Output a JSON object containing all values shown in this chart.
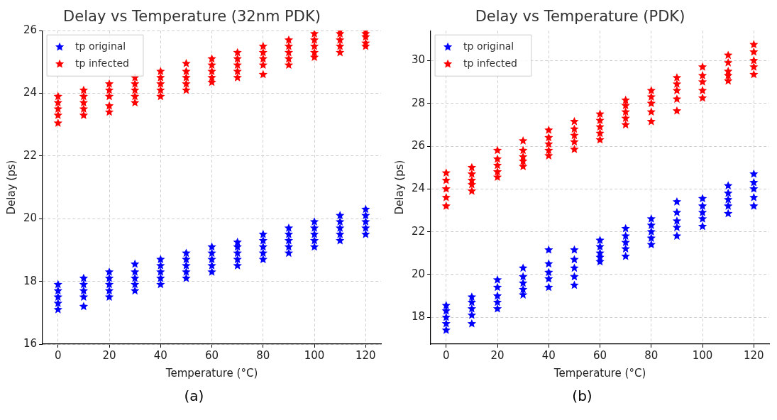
{
  "chart_data": [
    {
      "type": "scatter",
      "title": "Delay vs Temperature (32nm PDK)",
      "xlabel": "Temperature (°C)",
      "ylabel": "Delay (ps)",
      "annotations": [
        "(a)"
      ],
      "xlim": [
        -6,
        126
      ],
      "xticks": [
        0,
        20,
        40,
        60,
        80,
        100,
        120
      ],
      "ylim": [
        16,
        26
      ],
      "yticks": [
        16,
        18,
        20,
        22,
        24,
        26
      ],
      "grid": true,
      "legend": "top left",
      "marker": "star",
      "series": [
        {
          "name": "tp original",
          "color": "#0000ff",
          "x": [
            0,
            0,
            0,
            0,
            0,
            10,
            10,
            10,
            10,
            10,
            20,
            20,
            20,
            20,
            20,
            30,
            30,
            30,
            30,
            30,
            40,
            40,
            40,
            40,
            40,
            50,
            50,
            50,
            50,
            50,
            60,
            60,
            60,
            60,
            60,
            70,
            70,
            70,
            70,
            70,
            80,
            80,
            80,
            80,
            80,
            90,
            90,
            90,
            90,
            90,
            100,
            100,
            100,
            100,
            100,
            110,
            110,
            110,
            110,
            110,
            120,
            120,
            120,
            120,
            120
          ],
          "values": [
            17.1,
            17.3,
            17.5,
            17.7,
            17.9,
            17.2,
            17.5,
            17.7,
            17.9,
            18.1,
            17.5,
            17.7,
            17.9,
            18.1,
            18.3,
            17.7,
            17.9,
            18.1,
            18.3,
            18.55,
            17.9,
            18.1,
            18.3,
            18.5,
            18.7,
            18.1,
            18.3,
            18.5,
            18.7,
            18.9,
            18.3,
            18.5,
            18.7,
            18.9,
            19.1,
            18.5,
            18.7,
            18.9,
            19.1,
            19.25,
            18.7,
            18.9,
            19.1,
            19.3,
            19.5,
            18.9,
            19.1,
            19.3,
            19.5,
            19.7,
            19.1,
            19.3,
            19.5,
            19.7,
            19.9,
            19.3,
            19.5,
            19.7,
            19.9,
            20.1,
            19.5,
            19.7,
            19.9,
            20.1,
            20.3
          ]
        },
        {
          "name": "tp infected",
          "color": "#ff0000",
          "x": [
            0,
            0,
            0,
            0,
            0,
            10,
            10,
            10,
            10,
            10,
            20,
            20,
            20,
            20,
            20,
            30,
            30,
            30,
            30,
            30,
            40,
            40,
            40,
            40,
            40,
            50,
            50,
            50,
            50,
            50,
            60,
            60,
            60,
            60,
            60,
            70,
            70,
            70,
            70,
            70,
            80,
            80,
            80,
            80,
            80,
            90,
            90,
            90,
            90,
            90,
            100,
            100,
            100,
            100,
            100,
            110,
            110,
            110,
            110,
            110,
            120,
            120,
            120,
            120,
            120
          ],
          "values": [
            23.05,
            23.3,
            23.5,
            23.7,
            23.9,
            23.3,
            23.5,
            23.7,
            23.9,
            24.1,
            23.4,
            23.6,
            23.9,
            24.1,
            24.3,
            23.7,
            23.9,
            24.1,
            24.3,
            24.5,
            23.9,
            24.1,
            24.3,
            24.5,
            24.7,
            24.1,
            24.3,
            24.5,
            24.7,
            24.95,
            24.35,
            24.5,
            24.7,
            24.9,
            25.1,
            24.5,
            24.7,
            24.9,
            25.1,
            25.3,
            24.6,
            24.9,
            25.1,
            25.3,
            25.5,
            24.9,
            25.1,
            25.3,
            25.5,
            25.7,
            25.15,
            25.3,
            25.5,
            25.7,
            25.9,
            25.3,
            25.5,
            25.7,
            25.9,
            26,
            25.5,
            25.6,
            25.8,
            25.9,
            26
          ]
        }
      ]
    },
    {
      "type": "scatter",
      "title": "Delay vs Temperature (PDK)",
      "xlabel": "Temperature (°C)",
      "ylabel": "Delay (ps)",
      "annotations": [
        "(b)"
      ],
      "xlim": [
        -6,
        126
      ],
      "xticks": [
        0,
        20,
        40,
        60,
        80,
        100,
        120
      ],
      "ylim": [
        16.75,
        31.4
      ],
      "yticks": [
        18,
        20,
        22,
        24,
        26,
        28,
        30
      ],
      "grid": true,
      "legend": "top left",
      "marker": "star",
      "series": [
        {
          "name": "tp original",
          "color": "#0000ff",
          "x": [
            0,
            0,
            0,
            0,
            0,
            10,
            10,
            10,
            10,
            10,
            20,
            20,
            20,
            20,
            20,
            30,
            30,
            30,
            30,
            30,
            40,
            40,
            40,
            40,
            40,
            50,
            50,
            50,
            50,
            50,
            60,
            60,
            60,
            60,
            60,
            70,
            70,
            70,
            70,
            70,
            80,
            80,
            80,
            80,
            80,
            90,
            90,
            90,
            90,
            90,
            100,
            100,
            100,
            100,
            100,
            110,
            110,
            110,
            110,
            110,
            120,
            120,
            120,
            120,
            120
          ],
          "values": [
            17.4,
            17.7,
            18,
            18.3,
            18.55,
            17.7,
            18.1,
            18.4,
            18.7,
            18.95,
            18.4,
            18.7,
            19,
            19.4,
            19.75,
            19.05,
            19.3,
            19.6,
            19.9,
            20.3,
            19.4,
            19.8,
            20.1,
            20.5,
            21.15,
            19.5,
            19.9,
            20.3,
            20.7,
            21.15,
            20.6,
            20.8,
            21,
            21.3,
            21.6,
            20.85,
            21.2,
            21.5,
            21.8,
            22.15,
            21.4,
            21.7,
            22,
            22.3,
            22.6,
            21.8,
            22.2,
            22.5,
            22.9,
            23.4,
            22.25,
            22.6,
            22.9,
            23.2,
            23.55,
            22.85,
            23.2,
            23.5,
            23.8,
            24.15,
            23.2,
            23.6,
            24,
            24.3,
            24.7
          ]
        },
        {
          "name": "tp infected",
          "color": "#ff0000",
          "x": [
            0,
            0,
            0,
            0,
            0,
            10,
            10,
            10,
            10,
            10,
            20,
            20,
            20,
            20,
            20,
            30,
            30,
            30,
            30,
            30,
            40,
            40,
            40,
            40,
            40,
            50,
            50,
            50,
            50,
            50,
            60,
            60,
            60,
            60,
            60,
            70,
            70,
            70,
            70,
            70,
            80,
            80,
            80,
            80,
            80,
            90,
            90,
            90,
            90,
            90,
            100,
            100,
            100,
            100,
            100,
            110,
            110,
            110,
            110,
            110,
            120,
            120,
            120,
            120,
            120
          ],
          "values": [
            23.2,
            23.6,
            24,
            24.4,
            24.75,
            23.9,
            24.2,
            24.4,
            24.7,
            25,
            24.55,
            24.8,
            25.1,
            25.4,
            25.8,
            25.05,
            25.3,
            25.5,
            25.8,
            26.25,
            25.55,
            25.8,
            26.1,
            26.4,
            26.75,
            25.85,
            26.2,
            26.5,
            26.8,
            27.15,
            26.3,
            26.6,
            26.9,
            27.2,
            27.5,
            27,
            27.3,
            27.6,
            27.9,
            28.15,
            27.15,
            27.6,
            28,
            28.3,
            28.6,
            27.65,
            28.2,
            28.6,
            28.9,
            29.2,
            28.25,
            28.6,
            29,
            29.3,
            29.7,
            29.05,
            29.3,
            29.5,
            29.9,
            30.25,
            29.35,
            29.7,
            30,
            30.4,
            30.75
          ]
        }
      ]
    }
  ]
}
